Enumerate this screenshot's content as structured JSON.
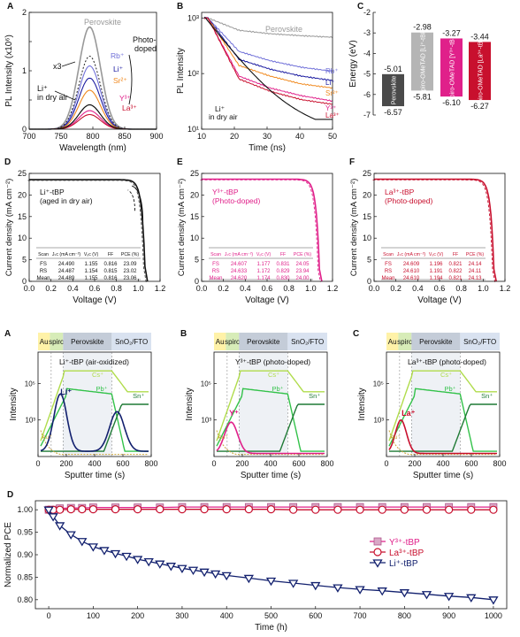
{
  "colors": {
    "perovskite": "#999999",
    "rb": "#6f6fd8",
    "li": "#1a1aa0",
    "sr": "#f08a20",
    "y": "#e0208a",
    "la": "#c8102e",
    "li_dry": "#111111",
    "black": "#111111",
    "spiro_li": "#b5b5b5",
    "spiro_y": "#e0208a",
    "spiro_la": "#c8102e",
    "pero_block": "#4a4a4a",
    "cs": "#b0dc4c",
    "pb": "#33c24a",
    "sn": "#1f7a35",
    "au": "#c9a238",
    "band_au": "#fff2a8",
    "band_spiro": "#d7ecb8",
    "band_pero": "#c4ccd8",
    "band_sno2": "#d9e2f0",
    "navy": "#12206e"
  },
  "panelA": {
    "letter": "A",
    "ylabel": "PL Intensity (x10⁶)",
    "xlabel": "Wavelength (nm)",
    "xticks": [
      "700",
      "750",
      "800",
      "850",
      "900"
    ],
    "yticks": [
      "0",
      "1",
      "2"
    ],
    "labels": {
      "perovskite": "Perovskite",
      "rb": "Rb⁺",
      "li": "Li⁺",
      "sr": "Sr²⁺",
      "y": "Y³⁺",
      "la": "La³⁺",
      "x3": "x3",
      "li_dry1": "Li⁺",
      "li_dry2": "in dry air",
      "photo1": "Photo-",
      "photo2": "doped"
    }
  },
  "panelB": {
    "letter": "B",
    "ylabel": "PL Intensity",
    "xlabel": "Time (ns)",
    "xticks": [
      "10",
      "20",
      "30",
      "40",
      "50"
    ],
    "yticks": [
      "10¹",
      "10²",
      "10³"
    ],
    "labels": {
      "perovskite": "Perovskite",
      "rb": "Rb⁺",
      "li": "Li⁺",
      "sr": "Sr²⁺",
      "y": "Y³⁺",
      "la": "La³⁺",
      "li_dry1": "Li⁺",
      "li_dry2": "in dry air"
    }
  },
  "panelC": {
    "letter": "C",
    "ylabel": "Energy (eV)",
    "yticks": [
      "-2",
      "-3",
      "-4",
      "-5",
      "-6",
      "-7"
    ],
    "blocks": [
      {
        "label": "Perovskite",
        "top": "-5.01",
        "bottom": "-6.57"
      },
      {
        "label": "Spiro-OMeTAD [Li⁺-tBP]",
        "top": "-2.98",
        "bottom": "-5.81"
      },
      {
        "label": "Spiro-OMeTAD [Y³⁺-tBP]",
        "top": "-3.27",
        "bottom": "-6.10"
      },
      {
        "label": "Spiro-OMeTAD [La³⁺-tBP]",
        "top": "-3.44",
        "bottom": "-6.27"
      }
    ]
  },
  "jv": {
    "ylabel": "Current density (mA cm⁻²)",
    "xlabel": "Voltage (V)",
    "xticks": [
      "0.0",
      "0.2",
      "0.4",
      "0.6",
      "0.8",
      "1.0",
      "1.2"
    ],
    "yticks": [
      "0",
      "5",
      "10",
      "15",
      "20",
      "25"
    ],
    "headers": [
      "Scan",
      "Jₛᴄ (mA cm⁻²)",
      "Vₒᴄ (V)",
      "FF",
      "PCE (%)"
    ],
    "D": {
      "letter": "D",
      "title1": "Li⁺-tBP",
      "title2": "(aged in dry air)",
      "rows": [
        [
          "FS",
          "24.490",
          "1.155",
          "0.816",
          "23.09"
        ],
        [
          "RS",
          "24.487",
          "1.154",
          "0.815",
          "23.02"
        ],
        [
          "Mean",
          "24.489",
          "1.155",
          "0.816",
          "23.06"
        ]
      ]
    },
    "E": {
      "letter": "E",
      "title1": "Y³⁺-tBP",
      "title2": "(Photo-doped)",
      "rows": [
        [
          "FS",
          "24.607",
          "1.177",
          "0.831",
          "24.05"
        ],
        [
          "RS",
          "24.633",
          "1.172",
          "0.829",
          "23.94"
        ],
        [
          "Mean",
          "24.620",
          "1.174",
          "0.830",
          "24.00"
        ]
      ]
    },
    "F": {
      "letter": "F",
      "title1": "La³⁺-tBP",
      "title2": "(Photo-doped)",
      "rows": [
        [
          "FS",
          "24.609",
          "1.196",
          "0.821",
          "24.14"
        ],
        [
          "RS",
          "24.610",
          "1.191",
          "0.822",
          "24.11"
        ],
        [
          "Mean",
          "24.610",
          "1.194",
          "0.821",
          "24.13"
        ]
      ]
    }
  },
  "tof": {
    "ylabel": "Intensity",
    "xlabel": "Sputter time (s)",
    "xticks": [
      "0",
      "200",
      "400",
      "600",
      "800"
    ],
    "yticks": [
      "10³",
      "10⁵"
    ],
    "bands": [
      "Au",
      "spiro",
      "Perovskite",
      "SnO₂/FTO"
    ],
    "ions": {
      "cs": "Cs⁺",
      "pb": "Pb⁺",
      "sn": "Sn⁺",
      "au": "Au⁺"
    },
    "A": {
      "letter": "A",
      "title": "Li⁺-tBP (air-oxidized)",
      "ion": "Li⁺"
    },
    "B": {
      "letter": "B",
      "title": "Y³⁺-tBP (photo-doped)",
      "ion": "Y⁺"
    },
    "C": {
      "letter": "C",
      "title": "La³⁺-tBP (photo-doped)",
      "ion": "La⁺"
    }
  },
  "panelD2": {
    "letter": "D",
    "ylabel": "Normalized PCE",
    "xlabel": "Time (h)",
    "xticks": [
      "0",
      "100",
      "200",
      "300",
      "400",
      "500",
      "600",
      "700",
      "800",
      "900",
      "1000"
    ],
    "yticks": [
      "0.80",
      "0.85",
      "0.90",
      "0.95",
      "1.00"
    ],
    "legend": [
      "Y³⁺-tBP",
      "La³⁺-tBP",
      "Li⁺-tBP"
    ]
  },
  "chart_data": [
    {
      "type": "line",
      "panel": "A",
      "xlabel": "Wavelength (nm)",
      "ylabel": "PL Intensity (x10⁶)",
      "xlim": [
        700,
        900
      ],
      "ylim": [
        0,
        2.4
      ],
      "series": [
        {
          "name": "Perovskite",
          "peak_x": 795,
          "peak_y": 2.1
        },
        {
          "name": "Rb⁺",
          "peak_x": 795,
          "peak_y": 1.3
        },
        {
          "name": "Li⁺",
          "peak_x": 795,
          "peak_y": 1.05
        },
        {
          "name": "Sr²⁺",
          "peak_x": 795,
          "peak_y": 0.8
        },
        {
          "name": "Y³⁺",
          "peak_x": 795,
          "peak_y": 0.38
        },
        {
          "name": "La³⁺",
          "peak_x": 795,
          "peak_y": 0.3
        }
      ]
    },
    {
      "type": "line",
      "panel": "B",
      "xlabel": "Time (ns)",
      "ylabel": "PL Intensity",
      "xlim": [
        8,
        50
      ],
      "yscale": "log",
      "series": [
        {
          "name": "Perovskite",
          "x": [
            10,
            20,
            30,
            40,
            50
          ],
          "y": [
            1000,
            600,
            520,
            480,
            450
          ]
        },
        {
          "name": "Rb⁺",
          "x": [
            10,
            20,
            30,
            40,
            50
          ],
          "y": [
            1000,
            250,
            170,
            130,
            110
          ]
        },
        {
          "name": "Li⁺",
          "x": [
            10,
            20,
            30,
            40,
            50
          ],
          "y": [
            1000,
            180,
            120,
            90,
            75
          ]
        },
        {
          "name": "Sr²⁺",
          "x": [
            10,
            20,
            30,
            40,
            50
          ],
          "y": [
            1000,
            140,
            90,
            65,
            55
          ]
        },
        {
          "name": "Y³⁺",
          "x": [
            10,
            20,
            30,
            40,
            50
          ],
          "y": [
            1000,
            90,
            55,
            40,
            32
          ]
        },
        {
          "name": "La³⁺",
          "x": [
            10,
            20,
            30,
            40,
            50
          ],
          "y": [
            1000,
            80,
            48,
            34,
            28
          ]
        }
      ]
    },
    {
      "type": "bar",
      "panel": "C",
      "ylabel": "Energy (eV)",
      "categories": [
        "Perovskite",
        "Spiro-OMeTAD [Li⁺-tBP]",
        "Spiro-OMeTAD [Y³⁺-tBP]",
        "Spiro-OMeTAD [La³⁺-tBP]"
      ],
      "top": [
        -5.01,
        -2.98,
        -3.27,
        -3.44
      ],
      "bottom": [
        -6.57,
        -5.81,
        -6.1,
        -6.27
      ],
      "ylim": [
        -7,
        -2
      ]
    },
    {
      "type": "line",
      "panel": "D",
      "xlabel": "Voltage (V)",
      "ylabel": "Current density (mA cm⁻²)",
      "xlim": [
        0,
        1.3
      ],
      "ylim": [
        0,
        26
      ],
      "jsc": 24.49,
      "voc": 1.155
    },
    {
      "type": "line",
      "panel": "E",
      "xlabel": "Voltage (V)",
      "ylabel": "Current density (mA cm⁻²)",
      "xlim": [
        0,
        1.3
      ],
      "ylim": [
        0,
        26
      ],
      "jsc": 24.62,
      "voc": 1.174
    },
    {
      "type": "line",
      "panel": "F",
      "xlabel": "Voltage (V)",
      "ylabel": "Current density (mA cm⁻²)",
      "xlim": [
        0,
        1.3
      ],
      "ylim": [
        0,
        26
      ],
      "jsc": 24.61,
      "voc": 1.194
    },
    {
      "type": "line",
      "panel": "D (stability)",
      "xlabel": "Time (h)",
      "ylabel": "Normalized PCE",
      "xlim": [
        -30,
        1030
      ],
      "ylim": [
        0.78,
        1.02
      ],
      "series": [
        {
          "name": "Y³⁺-tBP",
          "x": [
            0,
            10,
            25,
            50,
            75,
            100,
            150,
            200,
            250,
            300,
            350,
            400,
            450,
            500,
            550,
            600,
            650,
            700,
            750,
            800,
            850,
            900,
            950,
            1000
          ],
          "y": [
            1.0,
            1.0,
            1.003,
            1.004,
            1.004,
            1.005,
            1.005,
            1.005,
            1.005,
            1.006,
            1.006,
            1.006,
            1.006,
            1.006,
            1.006,
            1.006,
            1.006,
            1.006,
            1.006,
            1.006,
            1.006,
            1.006,
            1.006,
            1.006
          ]
        },
        {
          "name": "La³⁺-tBP",
          "x": [
            0,
            10,
            25,
            50,
            75,
            100,
            150,
            200,
            250,
            300,
            350,
            400,
            450,
            500,
            550,
            600,
            650,
            700,
            750,
            800,
            850,
            900,
            950,
            1000
          ],
          "y": [
            1.0,
            1.0,
            1.0,
            1.001,
            1.001,
            1.001,
            1.001,
            1.001,
            1.001,
            1.001,
            1.001,
            1.001,
            1.001,
            1.001,
            1.0,
            1.0,
            1.0,
            1.0,
            1.0,
            1.0,
            1.0,
            1.0,
            1.0,
            1.0
          ]
        },
        {
          "name": "Li⁺-tBP",
          "x": [
            0,
            10,
            25,
            50,
            75,
            100,
            125,
            150,
            175,
            200,
            225,
            250,
            275,
            300,
            325,
            350,
            375,
            400,
            450,
            500,
            550,
            600,
            650,
            700,
            750,
            800,
            850,
            900,
            950,
            1000
          ],
          "y": [
            1.0,
            0.985,
            0.965,
            0.945,
            0.93,
            0.918,
            0.91,
            0.903,
            0.897,
            0.89,
            0.885,
            0.88,
            0.875,
            0.87,
            0.866,
            0.862,
            0.858,
            0.854,
            0.848,
            0.842,
            0.837,
            0.832,
            0.827,
            0.823,
            0.82,
            0.816,
            0.812,
            0.808,
            0.805,
            0.8
          ]
        }
      ]
    }
  ]
}
